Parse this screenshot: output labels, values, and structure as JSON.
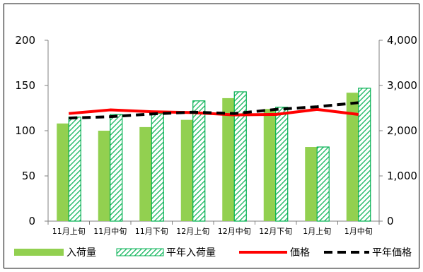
{
  "chart_data": {
    "type": "bar",
    "categories": [
      "11月上旬",
      "11月中旬",
      "11月下旬",
      "12月上旬",
      "12月中旬",
      "12月下旬",
      "1月上旬",
      "1月中旬"
    ],
    "series": [
      {
        "name": "入荷量",
        "kind": "bar",
        "axis": "left",
        "color": "#92d050",
        "values": [
          108,
          100,
          104,
          112,
          136,
          124,
          82,
          142
        ]
      },
      {
        "name": "平年入荷量",
        "kind": "bar",
        "axis": "left",
        "color": "#00b050",
        "pattern": "diagonal-hatch",
        "values": [
          115,
          118,
          119,
          133,
          143,
          126,
          82,
          147
        ]
      },
      {
        "name": "価格",
        "kind": "line",
        "axis": "right",
        "color": "#ff0000",
        "values": [
          2380,
          2460,
          2420,
          2400,
          2350,
          2360,
          2470,
          2360
        ]
      },
      {
        "name": "平年価格",
        "kind": "line",
        "axis": "right",
        "color": "#000000",
        "dash": "dashed",
        "values": [
          2280,
          2310,
          2370,
          2410,
          2380,
          2470,
          2530,
          2620
        ]
      }
    ],
    "y_left": {
      "min": 0,
      "max": 200,
      "ticks": [
        0,
        50,
        100,
        150,
        200
      ],
      "tick_labels": [
        "0",
        "50",
        "100",
        "150",
        "200"
      ]
    },
    "y_right": {
      "min": 0,
      "max": 4000,
      "ticks": [
        0,
        1000,
        2000,
        3000,
        4000
      ],
      "tick_labels": [
        "0",
        "1,000",
        "2,000",
        "3,000",
        "4,000"
      ]
    },
    "grid": false,
    "legend_position": "bottom"
  }
}
